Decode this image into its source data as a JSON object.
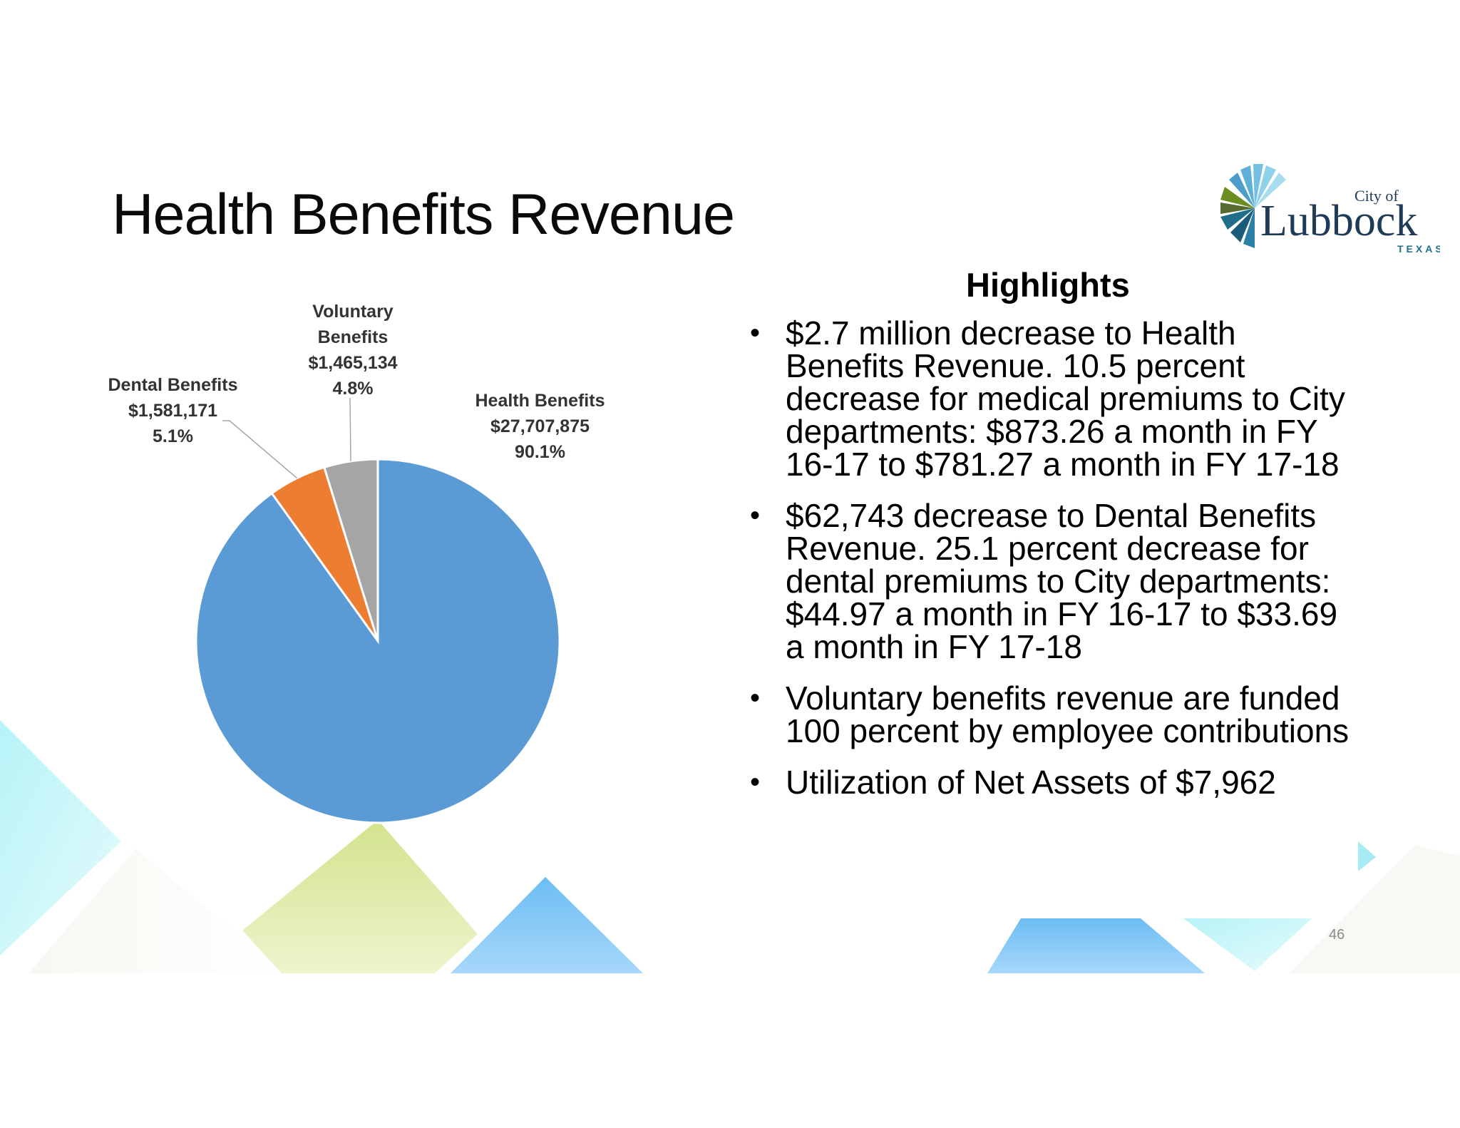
{
  "slide": {
    "title": "Health Benefits Revenue",
    "page_number": "46"
  },
  "logo": {
    "line1": "City of",
    "line2": "Lubbock",
    "line3": "TEXAS"
  },
  "highlights": {
    "heading": "Highlights",
    "bullets": [
      "$2.7 million decrease to Health Benefits Revenue.  10.5 percent decrease for medical premiums to City departments:  $873.26 a month in FY 16-17 to $781.27 a month in FY 17-18",
      "$62,743 decrease to Dental Benefits Revenue.  25.1 percent decrease for dental premiums to City departments: $44.97 a month in FY 16-17 to $33.69 a month in FY 17-18",
      "Voluntary benefits revenue are funded 100 percent by employee contributions",
      "Utilization of Net Assets of $7,962"
    ]
  },
  "chart_data": {
    "type": "pie",
    "title": "",
    "slices": [
      {
        "name": "Health Benefits",
        "value": 27707875,
        "value_label": "$27,707,875",
        "percent": "90.1%",
        "color": "#5b9bd5"
      },
      {
        "name": "Dental Benefits",
        "value": 1581171,
        "value_label": "$1,581,171",
        "percent": "5.1%",
        "color": "#ed7d31"
      },
      {
        "name": "Voluntary Benefits",
        "value": 1465134,
        "value_label": "$1,465,134",
        "percent": "4.8%",
        "color": "#a5a5a5"
      }
    ],
    "start_angle": "12 o'clock",
    "direction": "clockwise"
  }
}
